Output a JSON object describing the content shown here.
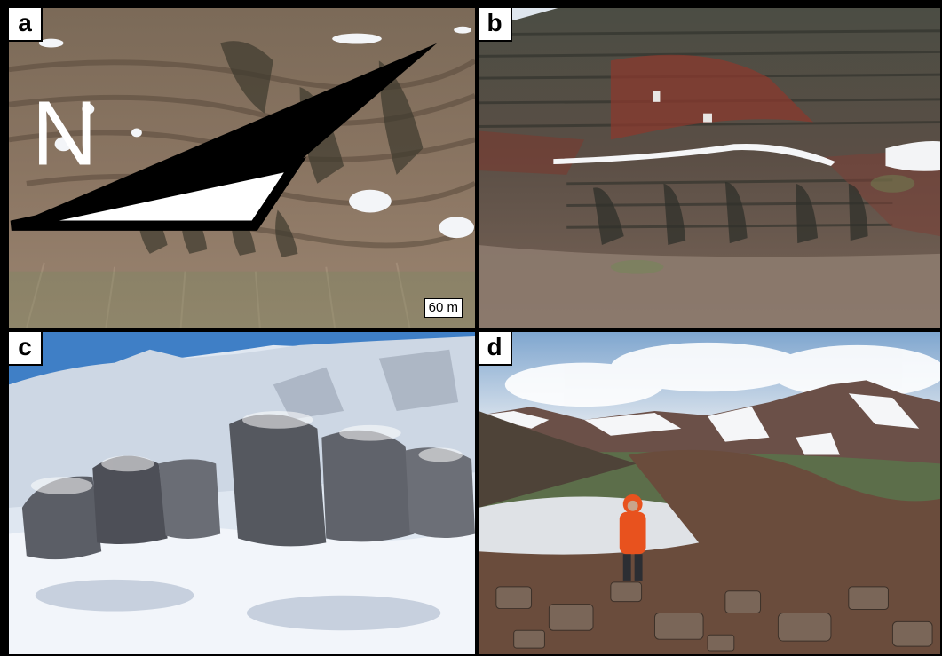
{
  "panels": [
    {
      "label": "a"
    },
    {
      "label": "b"
    },
    {
      "label": "c"
    },
    {
      "label": "d"
    }
  ],
  "scale_bar": {
    "text": "60 m",
    "north_symbol": "N"
  },
  "colors": {
    "rock_brown": "#8a6a55",
    "cliff_dark": "#4a4a3e",
    "snow": "#eef2f8",
    "sky": "#4b86c9",
    "jacket": "#e8521e"
  }
}
